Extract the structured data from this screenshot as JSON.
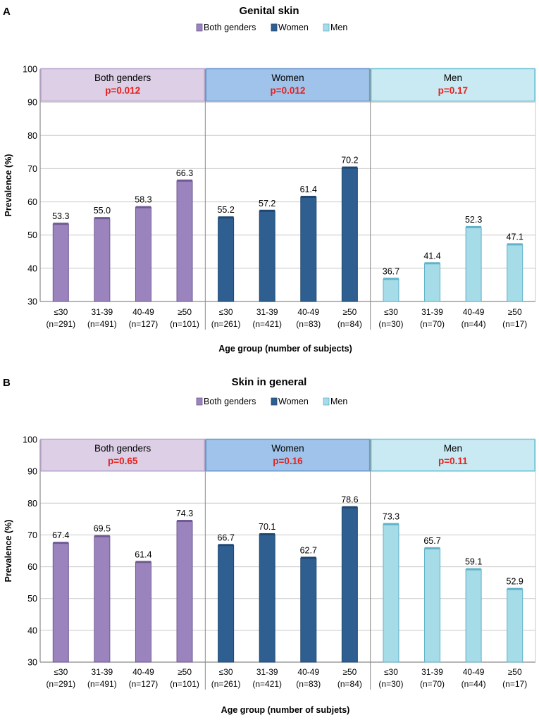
{
  "colors": {
    "both_fill": "#9b84be",
    "both_stroke": "#6f5a93",
    "women_fill": "#2f5f91",
    "women_stroke": "#1f4770",
    "men_fill": "#a6dbe8",
    "men_stroke": "#5fb2c8",
    "header_both_fill": "#dccfe6",
    "header_both_stroke": "#b9a7cf",
    "header_women_fill": "#9fc3ea",
    "header_women_stroke": "#6b98cc",
    "header_men_fill": "#c9eaf2",
    "header_men_stroke": "#6cc4d6",
    "pvalue": "#e8201c",
    "grid": "#c9c9c9",
    "axis": "#8a8a8a",
    "text": "#000000"
  },
  "chart_data": [
    {
      "type": "bar",
      "panel_label": "A",
      "title": "Genital skin",
      "xlabel": "Age group (number of subjects)",
      "ylabel": "Prevalence (%)",
      "ylim": [
        30,
        100
      ],
      "yticks": [
        30,
        40,
        50,
        60,
        70,
        80,
        90,
        100
      ],
      "legend": [
        "Both genders",
        "Women",
        "Men"
      ],
      "groups": [
        {
          "name": "Both genders",
          "p_value": "p=0.012",
          "color_key": "both",
          "categories": [
            "≤30",
            "31-39",
            "40-49",
            "≥50"
          ],
          "n_labels": [
            "(n=291)",
            "(n=491)",
            "(n=127)",
            "(n=101)"
          ],
          "values": [
            53.3,
            55.0,
            58.3,
            66.3
          ],
          "value_labels": [
            "53.3",
            "55.0",
            "58.3",
            "66.3"
          ]
        },
        {
          "name": "Women",
          "p_value": "p=0.012",
          "color_key": "women",
          "categories": [
            "≤30",
            "31-39",
            "40-49",
            "≥50"
          ],
          "n_labels": [
            "(n=261)",
            "(n=421)",
            "(n=83)",
            "(n=84)"
          ],
          "values": [
            55.2,
            57.2,
            61.4,
            70.2
          ],
          "value_labels": [
            "55.2",
            "57.2",
            "61.4",
            "70.2"
          ]
        },
        {
          "name": "Men",
          "p_value": "p=0.17",
          "color_key": "men",
          "categories": [
            "≤30",
            "31-39",
            "40-49",
            "≥50"
          ],
          "n_labels": [
            "(n=30)",
            "(n=70)",
            "(n=44)",
            "(n=17)"
          ],
          "values": [
            36.7,
            41.4,
            52.3,
            47.1
          ],
          "value_labels": [
            "36.7",
            "41.4",
            "52.3",
            "47.1"
          ]
        }
      ]
    },
    {
      "type": "bar",
      "panel_label": "B",
      "title": "Skin in general",
      "xlabel": "Age group (number of subjets)",
      "ylabel": "Prevalence (%)",
      "ylim": [
        30,
        100
      ],
      "yticks": [
        30,
        40,
        50,
        60,
        70,
        80,
        90,
        100
      ],
      "legend": [
        "Both genders",
        "Women",
        "Men"
      ],
      "groups": [
        {
          "name": "Both genders",
          "p_value": "p=0.65",
          "color_key": "both",
          "categories": [
            "≤30",
            "31-39",
            "40-49",
            "≥50"
          ],
          "n_labels": [
            "(n=291)",
            "(n=491)",
            "(n=127)",
            "(n=101)"
          ],
          "values": [
            67.4,
            69.5,
            61.4,
            74.3
          ],
          "value_labels": [
            "67.4",
            "69.5",
            "61.4",
            "74.3"
          ]
        },
        {
          "name": "Women",
          "p_value": "p=0.16",
          "color_key": "women",
          "categories": [
            "≤30",
            "31-39",
            "40-49",
            "≥50"
          ],
          "n_labels": [
            "(n=261)",
            "(n=421)",
            "(n=83)",
            "(n=84)"
          ],
          "values": [
            66.7,
            70.1,
            62.7,
            78.6
          ],
          "value_labels": [
            "66.7",
            "70.1",
            "62.7",
            "78.6"
          ]
        },
        {
          "name": "Men",
          "p_value": "p=0.11",
          "color_key": "men",
          "categories": [
            "≤30",
            "31-39",
            "40-49",
            "≥50"
          ],
          "n_labels": [
            "(n=30)",
            "(n=70)",
            "(n=44)",
            "(n=17)"
          ],
          "values": [
            73.3,
            65.7,
            59.1,
            52.9
          ],
          "value_labels": [
            "73.3",
            "65.7",
            "59.1",
            "52.9"
          ]
        }
      ]
    }
  ]
}
